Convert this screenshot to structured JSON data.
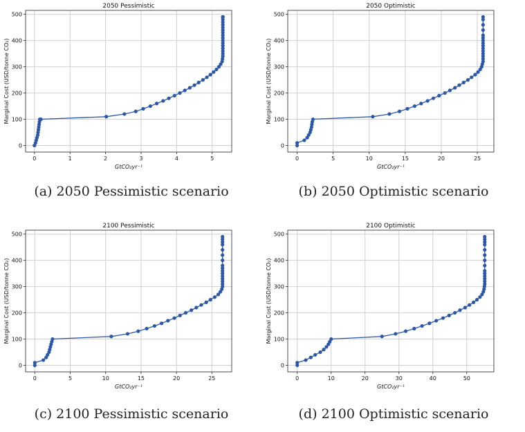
{
  "chart_data": [
    {
      "type": "line",
      "title": "2050 Pessimistic",
      "caption": "(a) 2050 Pessimistic scenario",
      "xlabel": "GtCO₂yr⁻¹",
      "ylabel": "Marginal Cost (USD/tonne CO₂)",
      "xlim": [
        -0.25,
        5.55
      ],
      "ylim": [
        -25,
        515
      ],
      "xticks": [
        0,
        1,
        2,
        3,
        4,
        5
      ],
      "yticks": [
        0,
        100,
        200,
        300,
        400,
        500
      ],
      "grid": true,
      "series": [
        {
          "x": [
            0.0,
            0.03,
            0.05,
            0.07,
            0.09,
            0.1,
            0.11,
            0.12,
            0.13,
            0.14,
            0.15,
            0.16,
            0.17,
            0.18,
            2.02,
            2.53,
            2.85,
            3.06,
            3.26,
            3.44,
            3.62,
            3.78,
            3.94,
            4.09,
            4.23,
            4.37,
            4.5,
            4.62,
            4.74,
            4.85,
            4.95,
            5.04,
            5.12,
            5.19,
            5.24,
            5.28,
            5.29,
            5.3,
            5.3,
            5.3,
            5.3,
            5.3,
            5.3,
            5.3,
            5.3,
            5.3,
            5.3,
            5.3,
            5.3,
            5.3,
            5.3,
            5.3,
            5.3,
            5.3,
            5.3,
            5.3
          ],
          "y": [
            0,
            10,
            20,
            30,
            40,
            50,
            60,
            70,
            80,
            90,
            100,
            100,
            100,
            100,
            110,
            120,
            130,
            140,
            150,
            160,
            170,
            180,
            190,
            200,
            210,
            220,
            230,
            240,
            250,
            260,
            270,
            280,
            290,
            300,
            310,
            320,
            330,
            340,
            350,
            360,
            370,
            380,
            390,
            400,
            410,
            420,
            430,
            440,
            450,
            460,
            470,
            480,
            490,
            490,
            490,
            490
          ]
        }
      ]
    },
    {
      "type": "line",
      "title": "2050 Optimistic",
      "caption": "(b) 2050 Optimistic scenario",
      "xlabel": "GtCO₂yr⁻¹",
      "ylabel": "Marginal Cost (USD/tonne CO₂)",
      "xlim": [
        -1.3,
        27.3
      ],
      "ylim": [
        -25,
        515
      ],
      "xticks": [
        0,
        5,
        10,
        15,
        20,
        25
      ],
      "yticks": [
        0,
        100,
        200,
        300,
        400,
        500
      ],
      "grid": true,
      "series": [
        {
          "x": [
            0.0,
            0.0,
            1.0,
            1.4,
            1.6,
            1.8,
            1.9,
            2.0,
            2.05,
            2.1,
            2.2,
            10.5,
            12.8,
            14.2,
            15.3,
            16.3,
            17.2,
            18.1,
            18.9,
            19.7,
            20.5,
            21.2,
            21.9,
            22.5,
            23.1,
            23.7,
            24.2,
            24.7,
            25.1,
            25.4,
            25.6,
            25.7,
            25.8,
            25.8,
            25.8,
            25.8,
            25.8,
            25.8,
            25.8,
            25.8,
            25.8,
            25.8,
            25.8,
            25.8,
            25.8,
            25.8,
            25.8
          ],
          "y": [
            0,
            10,
            20,
            30,
            40,
            50,
            60,
            70,
            80,
            90,
            100,
            110,
            120,
            130,
            140,
            150,
            160,
            170,
            180,
            190,
            200,
            210,
            220,
            230,
            240,
            250,
            260,
            270,
            280,
            290,
            300,
            310,
            320,
            330,
            340,
            350,
            360,
            370,
            380,
            390,
            400,
            410,
            420,
            440,
            460,
            480,
            490
          ]
        }
      ]
    },
    {
      "type": "line",
      "title": "2100 Pessimistic",
      "caption": "(c) 2100 Pessimistic scenario",
      "xlabel": "GtCO₂yr⁻¹",
      "ylabel": "Marginal Cost (USD/tonne CO₂)",
      "xlim": [
        -1.3,
        27.8
      ],
      "ylim": [
        -25,
        515
      ],
      "xticks": [
        0,
        5,
        10,
        15,
        20,
        25
      ],
      "yticks": [
        0,
        100,
        200,
        300,
        400,
        500
      ],
      "grid": true,
      "series": [
        {
          "x": [
            0.0,
            0.0,
            1.2,
            1.6,
            1.8,
            2.0,
            2.1,
            2.2,
            2.3,
            2.4,
            2.5,
            10.8,
            13.1,
            14.6,
            15.8,
            16.9,
            17.9,
            18.8,
            19.7,
            20.5,
            21.3,
            22.1,
            22.8,
            23.5,
            24.2,
            24.8,
            25.4,
            25.9,
            26.2,
            26.4,
            26.5,
            26.5,
            26.5,
            26.5,
            26.5,
            26.5,
            26.5,
            26.5,
            26.5,
            26.5,
            26.5,
            26.5,
            26.5,
            26.5,
            26.5,
            26.5
          ],
          "y": [
            0,
            10,
            20,
            30,
            40,
            50,
            60,
            70,
            80,
            90,
            100,
            110,
            120,
            130,
            140,
            150,
            160,
            170,
            180,
            190,
            200,
            210,
            220,
            230,
            240,
            250,
            260,
            270,
            280,
            290,
            300,
            310,
            320,
            330,
            340,
            350,
            360,
            370,
            380,
            400,
            420,
            440,
            460,
            470,
            480,
            490
          ]
        }
      ]
    },
    {
      "type": "line",
      "title": "2100 Optimistic",
      "caption": "(d) 2100 Optimistic scenario",
      "xlabel": "GtCO₂yr⁻¹",
      "ylabel": "Marginal Cost (USD/tonne CO₂)",
      "xlim": [
        -2.8,
        58
      ],
      "ylim": [
        -25,
        515
      ],
      "xticks": [
        0,
        10,
        20,
        30,
        40,
        50
      ],
      "yticks": [
        0,
        100,
        200,
        300,
        400,
        500
      ],
      "grid": true,
      "series": [
        {
          "x": [
            0.0,
            0.0,
            2.5,
            4.0,
            5.3,
            6.8,
            7.8,
            8.6,
            9.2,
            9.6,
            10.0,
            25.0,
            29.0,
            32.0,
            34.5,
            36.8,
            39.0,
            41.0,
            43.0,
            44.8,
            46.5,
            48.0,
            49.5,
            50.8,
            52.0,
            53.0,
            53.9,
            54.5,
            54.9,
            55.1,
            55.2,
            55.3,
            55.3,
            55.3,
            55.3,
            55.3,
            55.3,
            55.3,
            55.3,
            55.3,
            55.3,
            55.3,
            55.3,
            55.3,
            55.3
          ],
          "y": [
            0,
            10,
            20,
            30,
            40,
            50,
            60,
            70,
            80,
            90,
            100,
            110,
            120,
            130,
            140,
            150,
            160,
            170,
            180,
            190,
            200,
            210,
            220,
            230,
            240,
            250,
            260,
            270,
            280,
            290,
            300,
            310,
            320,
            330,
            340,
            350,
            360,
            380,
            400,
            420,
            440,
            460,
            470,
            480,
            490
          ]
        }
      ]
    }
  ]
}
